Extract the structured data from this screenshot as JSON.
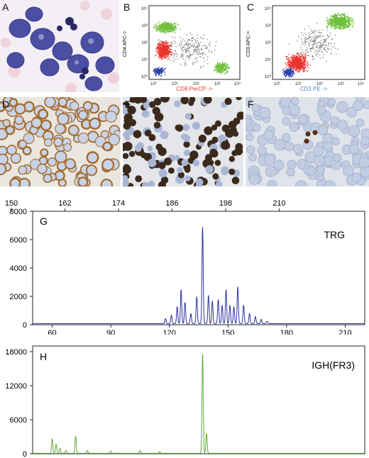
{
  "panels": {
    "a": {
      "letter": "A"
    },
    "b": {
      "letter": "B",
      "xlabel": "CD8 PerCP ->",
      "ylabel": "CD4 APC->",
      "xticks": [
        "10⁰",
        "10¹",
        "10²",
        "10³",
        "10⁴"
      ],
      "yticks": [
        "10⁴",
        "10³",
        "10²",
        "10¹",
        "10⁰"
      ]
    },
    "c": {
      "letter": "C",
      "xlabel": "CD2 PE ->",
      "ylabel": "CD3 APC->",
      "xticks": [
        "10⁰",
        "10¹",
        "10²",
        "10³",
        "10⁴"
      ],
      "yticks": [
        "10⁴",
        "10³",
        "10²",
        "10¹",
        "10⁰"
      ]
    },
    "d": {
      "letter": "D"
    },
    "e": {
      "letter": "E"
    },
    "f": {
      "letter": "F"
    }
  },
  "colors": {
    "green": "#6fbf3a",
    "red": "#e8322b",
    "blue": "#2b3fa8",
    "trg_line": "#2e2f9e",
    "igh_line": "#5ea83a"
  },
  "chart_data": [
    {
      "type": "line",
      "panel_letter": "G",
      "series_label": "TRG",
      "top_axis_ticks": [
        "150",
        "162",
        "174",
        "186",
        "198",
        "210"
      ],
      "bottom_axis_ticks": [
        "60",
        "90",
        "120",
        "150",
        "180",
        "210"
      ],
      "y_ticks": [
        "8000",
        "6000",
        "4000",
        "2000",
        "0"
      ],
      "ylim": [
        0,
        8000
      ],
      "xlim": [
        50,
        220
      ],
      "peaks": [
        {
          "x": 118,
          "y": 350
        },
        {
          "x": 121,
          "y": 600
        },
        {
          "x": 124,
          "y": 1200
        },
        {
          "x": 126,
          "y": 2400
        },
        {
          "x": 128,
          "y": 1500
        },
        {
          "x": 131,
          "y": 700
        },
        {
          "x": 134,
          "y": 1900
        },
        {
          "x": 137,
          "y": 6800
        },
        {
          "x": 140,
          "y": 2000
        },
        {
          "x": 142,
          "y": 1600
        },
        {
          "x": 145,
          "y": 1700
        },
        {
          "x": 147,
          "y": 1300
        },
        {
          "x": 149,
          "y": 2400
        },
        {
          "x": 151,
          "y": 1300
        },
        {
          "x": 153,
          "y": 1200
        },
        {
          "x": 155,
          "y": 2600
        },
        {
          "x": 158,
          "y": 1300
        },
        {
          "x": 161,
          "y": 700
        },
        {
          "x": 164,
          "y": 500
        },
        {
          "x": 167,
          "y": 300
        },
        {
          "x": 170,
          "y": 150
        }
      ]
    },
    {
      "type": "line",
      "panel_letter": "H",
      "series_label": "IGH(FR3)",
      "y_ticks": [
        "18000",
        "12000",
        "6000",
        "0"
      ],
      "ylim": [
        0,
        19000
      ],
      "xlim": [
        50,
        220
      ],
      "peaks": [
        {
          "x": 60,
          "y": 2600
        },
        {
          "x": 62,
          "y": 1600
        },
        {
          "x": 64,
          "y": 900
        },
        {
          "x": 67,
          "y": 500
        },
        {
          "x": 72,
          "y": 3000
        },
        {
          "x": 78,
          "y": 500
        },
        {
          "x": 90,
          "y": 400
        },
        {
          "x": 105,
          "y": 500
        },
        {
          "x": 115,
          "y": 300
        },
        {
          "x": 137,
          "y": 17500
        },
        {
          "x": 139,
          "y": 3500
        }
      ]
    }
  ]
}
